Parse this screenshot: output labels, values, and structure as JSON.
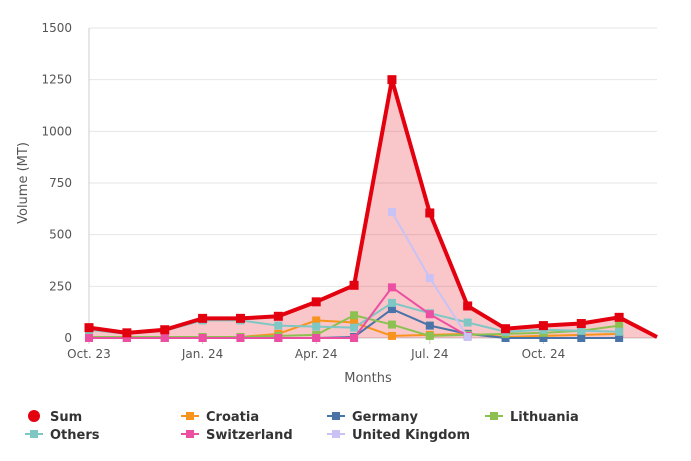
{
  "chart_data": {
    "type": "line",
    "xlabel": "Months",
    "ylabel": "Volume (MT)",
    "ylim": [
      0,
      1500
    ],
    "yticks": [
      0,
      250,
      500,
      750,
      1000,
      1250,
      1500
    ],
    "x_tick_labels": [
      {
        "index": 0,
        "label": "Oct. 23"
      },
      {
        "index": 3,
        "label": "Jan. 24"
      },
      {
        "index": 6,
        "label": "Apr. 24"
      },
      {
        "index": 9,
        "label": "Jul. 24"
      },
      {
        "index": 12,
        "label": "Oct. 24"
      }
    ],
    "months": [
      "2023-10",
      "2023-11",
      "2023-12",
      "2024-01",
      "2024-02",
      "2024-03",
      "2024-04",
      "2024-05",
      "2024-06",
      "2024-07",
      "2024-08",
      "2024-09",
      "2024-10",
      "2024-11",
      "2024-12",
      "2025-01"
    ],
    "grid": true,
    "legend_position": "bottom",
    "series": [
      {
        "name": "Sum",
        "color": "#e3000f",
        "area": true,
        "values": [
          50,
          25,
          40,
          95,
          95,
          105,
          175,
          255,
          1250,
          605,
          155,
          45,
          60,
          70,
          100,
          5
        ]
      },
      {
        "name": "Croatia",
        "color": "#f7941d",
        "values": [
          0,
          0,
          0,
          0,
          5,
          20,
          85,
          75,
          10,
          15,
          20,
          5,
          10,
          15,
          20,
          null
        ]
      },
      {
        "name": "Germany",
        "color": "#4a74a8",
        "values": [
          0,
          0,
          0,
          0,
          0,
          0,
          0,
          5,
          140,
          60,
          20,
          0,
          0,
          0,
          0,
          null
        ]
      },
      {
        "name": "Lithuania",
        "color": "#8cc152",
        "values": [
          5,
          5,
          5,
          5,
          5,
          10,
          15,
          110,
          65,
          10,
          15,
          20,
          25,
          35,
          60,
          null
        ]
      },
      {
        "name": "Others",
        "color": "#7fc7c4",
        "values": [
          40,
          20,
          35,
          85,
          85,
          60,
          55,
          50,
          170,
          120,
          75,
          30,
          40,
          35,
          30,
          null
        ]
      },
      {
        "name": "Switzerland",
        "color": "#ec4fa2",
        "values": [
          0,
          0,
          0,
          0,
          0,
          0,
          0,
          0,
          245,
          115,
          10,
          null,
          null,
          null,
          null,
          null
        ]
      },
      {
        "name": "United Kingdom",
        "color": "#c9c3f5",
        "values": [
          null,
          null,
          null,
          null,
          null,
          null,
          null,
          null,
          610,
          290,
          5,
          null,
          null,
          null,
          null,
          null
        ]
      }
    ]
  }
}
